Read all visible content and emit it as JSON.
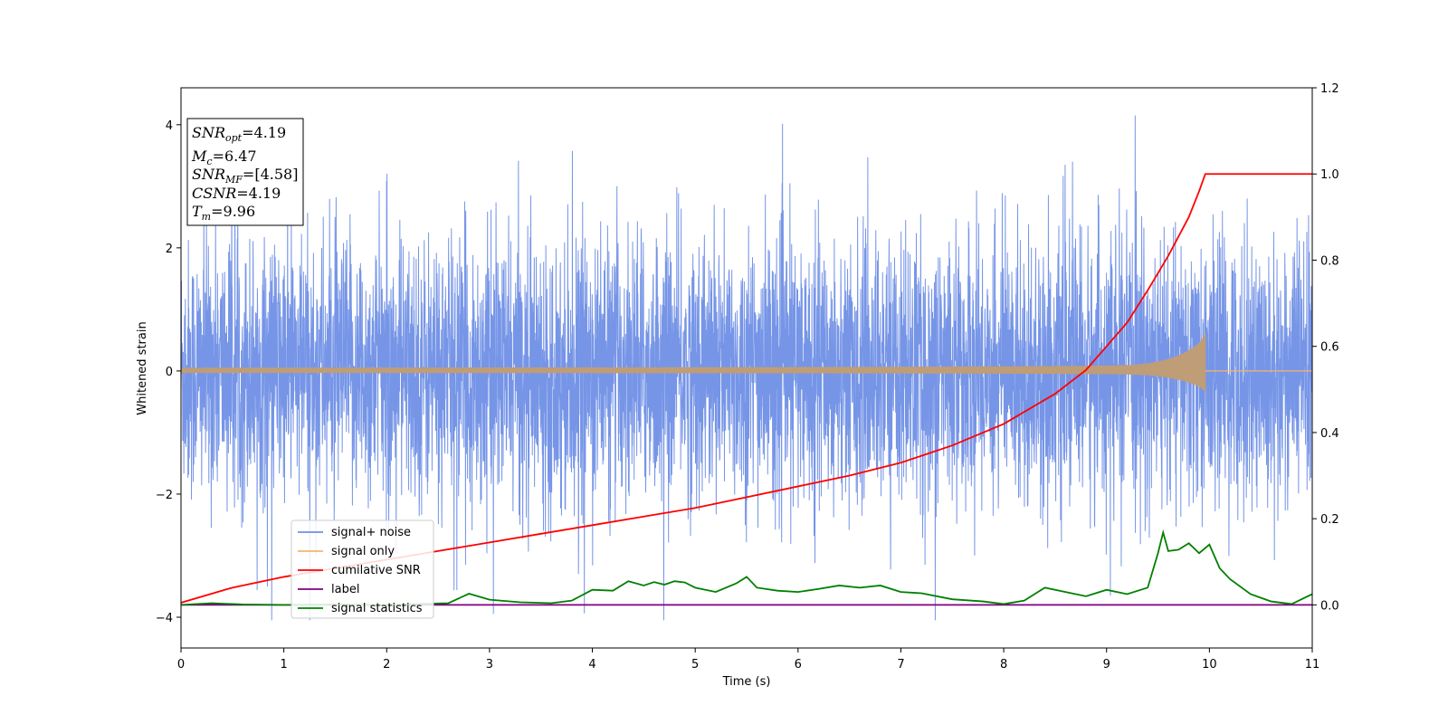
{
  "chart_data": {
    "type": "line",
    "xlabel": "Time (s)",
    "ylabel": "Whitened strain",
    "xlim": [
      0,
      11
    ],
    "ylim": [
      -4.5,
      4.6
    ],
    "y2lim": [
      -0.1,
      1.2
    ],
    "xticks": [
      "0",
      "1",
      "2",
      "3",
      "4",
      "5",
      "6",
      "7",
      "8",
      "9",
      "10",
      "11"
    ],
    "yticks": [
      "−4",
      "−2",
      "0",
      "2",
      "4"
    ],
    "y2ticks": [
      "0.0",
      "0.2",
      "0.4",
      "0.6",
      "0.8",
      "1.0",
      "1.2"
    ],
    "legend_position": "lower-left",
    "series": [
      {
        "name": "signal+ noise",
        "color": "#6f8fe6",
        "axis": "left",
        "description_values": "whitened noise, amplitude approx ±2.5 with spikes to ±4.1",
        "amplitude": 2.5,
        "x_range": [
          0,
          11
        ]
      },
      {
        "name": "signal only",
        "color": "#f5b56a",
        "axis": "left",
        "chirp_end": 9.96,
        "peak_amplitude": 0.6
      },
      {
        "name": "cumilative SNR",
        "color": "#ff0000",
        "axis": "right",
        "x": [
          0,
          0.5,
          1,
          1.5,
          2,
          2.5,
          3,
          3.5,
          4,
          4.5,
          5,
          5.5,
          6,
          6.5,
          7,
          7.5,
          8,
          8.5,
          8.8,
          9,
          9.2,
          9.4,
          9.6,
          9.8,
          9.9,
          9.96,
          10,
          11
        ],
        "y": [
          0.005,
          0.04,
          0.065,
          0.085,
          0.105,
          0.125,
          0.145,
          0.165,
          0.185,
          0.205,
          0.225,
          0.25,
          0.275,
          0.3,
          0.33,
          0.37,
          0.42,
          0.49,
          0.545,
          0.6,
          0.655,
          0.73,
          0.81,
          0.9,
          0.96,
          1.0,
          1.0,
          1.0
        ]
      },
      {
        "name": "label",
        "color": "#800080",
        "axis": "right",
        "x": [
          0,
          11
        ],
        "y": [
          0,
          0
        ]
      },
      {
        "name": "signal statistics",
        "color": "#008000",
        "axis": "right",
        "x": [
          0,
          0.3,
          0.6,
          1,
          1.5,
          2,
          2.3,
          2.6,
          2.8,
          3,
          3.3,
          3.6,
          3.8,
          4.0,
          4.2,
          4.35,
          4.5,
          4.6,
          4.7,
          4.8,
          4.9,
          5.0,
          5.2,
          5.4,
          5.5,
          5.6,
          5.8,
          6.0,
          6.2,
          6.4,
          6.6,
          6.8,
          7.0,
          7.2,
          7.5,
          7.8,
          8.0,
          8.2,
          8.4,
          8.6,
          8.8,
          9.0,
          9.2,
          9.4,
          9.5,
          9.55,
          9.6,
          9.7,
          9.8,
          9.9,
          10.0,
          10.1,
          10.2,
          10.4,
          10.6,
          10.8,
          11.0
        ],
        "y": [
          0.0,
          0.004,
          0.001,
          0.0,
          0.001,
          0.0,
          0.002,
          0.004,
          0.026,
          0.012,
          0.006,
          0.004,
          0.01,
          0.035,
          0.033,
          0.055,
          0.045,
          0.053,
          0.047,
          0.055,
          0.052,
          0.04,
          0.03,
          0.05,
          0.065,
          0.04,
          0.033,
          0.03,
          0.037,
          0.045,
          0.04,
          0.045,
          0.03,
          0.027,
          0.013,
          0.008,
          0.002,
          0.01,
          0.04,
          0.03,
          0.02,
          0.035,
          0.025,
          0.04,
          0.12,
          0.168,
          0.125,
          0.128,
          0.143,
          0.12,
          0.14,
          0.085,
          0.06,
          0.025,
          0.008,
          0.002,
          0.025
        ]
      }
    ]
  },
  "info_box": {
    "snr_opt_base": "SNR",
    "snr_opt_sub": "opt",
    "snr_opt_value": "=4.19",
    "mc_base": "M",
    "mc_sub": "c",
    "mc_value": "=6.47",
    "snr_mf_base": "SNR",
    "snr_mf_sub": "MF",
    "snr_mf_value": "=[4.58]",
    "csnr_base": "CSNR",
    "csnr_value": "=4.19",
    "tm_base": "T",
    "tm_sub": "m",
    "tm_value": "=9.96"
  }
}
